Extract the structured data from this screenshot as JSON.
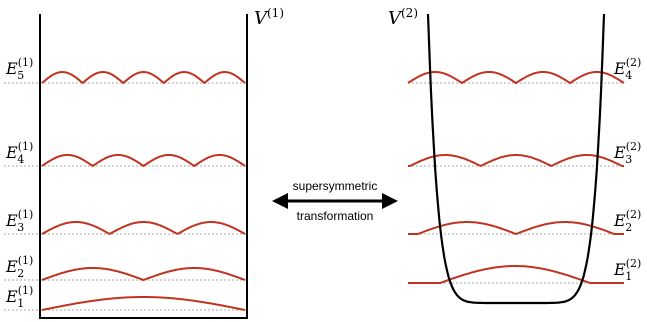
{
  "colors": {
    "wavefunction": "#c0331f",
    "potential": "#000000",
    "level_line": "#a8a8a8"
  },
  "potentials": {
    "left": {
      "symbol": "V",
      "superscript": "(1)"
    },
    "right": {
      "symbol": "V",
      "superscript": "(2)"
    }
  },
  "left_levels": [
    {
      "symbol": "E",
      "sub": "1",
      "sup": "(1)",
      "nodes": 1
    },
    {
      "symbol": "E",
      "sub": "2",
      "sup": "(1)",
      "nodes": 2
    },
    {
      "symbol": "E",
      "sub": "3",
      "sup": "(1)",
      "nodes": 3
    },
    {
      "symbol": "E",
      "sub": "4",
      "sup": "(1)",
      "nodes": 4
    },
    {
      "symbol": "E",
      "sub": "5",
      "sup": "(1)",
      "nodes": 5
    }
  ],
  "right_levels": [
    {
      "symbol": "E",
      "sub": "1",
      "sup": "(2)",
      "nodes": 1
    },
    {
      "symbol": "E",
      "sub": "2",
      "sup": "(2)",
      "nodes": 2
    },
    {
      "symbol": "E",
      "sub": "3",
      "sup": "(2)",
      "nodes": 3
    },
    {
      "symbol": "E",
      "sub": "4",
      "sup": "(2)",
      "nodes": 4
    }
  ],
  "arrow": {
    "top_text": "supersymmetric",
    "bottom_text": "transformation"
  }
}
